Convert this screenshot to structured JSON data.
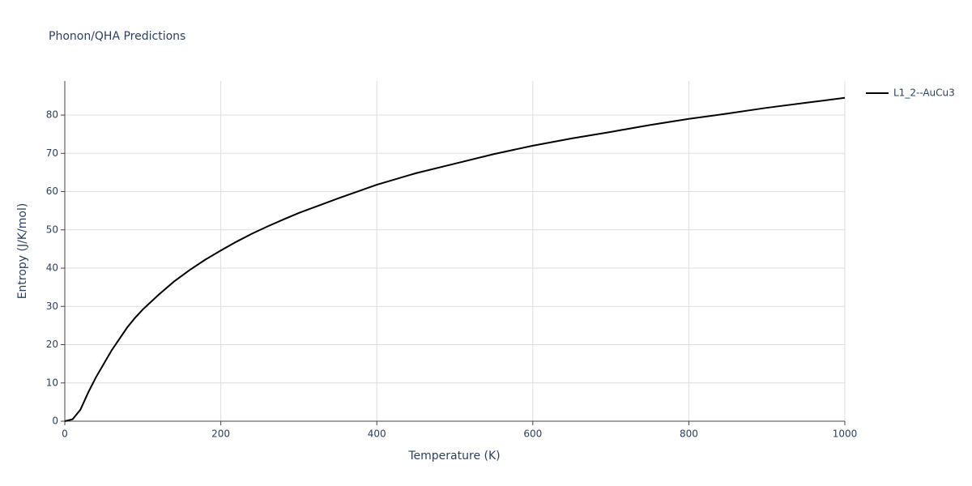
{
  "chart_data": {
    "type": "line",
    "title": "Phonon/QHA Predictions",
    "x_label": "Temperature (K)",
    "y_label": "Entropy (J/K/mol)",
    "x": [
      0,
      10,
      20,
      30,
      40,
      50,
      60,
      70,
      80,
      90,
      100,
      120,
      140,
      160,
      180,
      200,
      220,
      240,
      260,
      280,
      300,
      350,
      400,
      450,
      500,
      550,
      600,
      650,
      700,
      750,
      800,
      850,
      900,
      950,
      1000
    ],
    "series": [
      {
        "name": "L1_2--AuCu3",
        "color": "#000000",
        "values": [
          0,
          0.5,
          3,
          7.5,
          11.5,
          15,
          18.5,
          21.5,
          24.5,
          27,
          29.2,
          33,
          36.5,
          39.5,
          42.2,
          44.6,
          46.9,
          49,
          50.9,
          52.7,
          54.4,
          58.2,
          61.8,
          64.8,
          67.3,
          69.8,
          72.0,
          73.9,
          75.6,
          77.4,
          79.0,
          80.4,
          81.9,
          83.2,
          84.5
        ]
      }
    ],
    "xlim": [
      0,
      1000
    ],
    "xticks": [
      0,
      200,
      400,
      600,
      800,
      1000
    ],
    "ylim": [
      0,
      88.9
    ],
    "yticks": [
      0,
      10,
      20,
      30,
      40,
      50,
      60,
      70,
      80
    ],
    "grid": true,
    "legend": "right"
  }
}
